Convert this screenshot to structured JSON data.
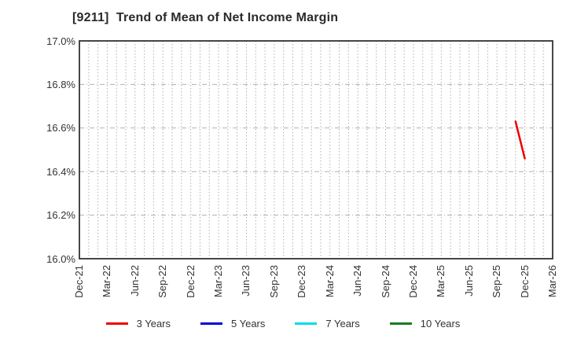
{
  "chart_data": {
    "type": "line",
    "title": "[9211]  Trend of Mean of Net Income Margin",
    "stock_code": "9211",
    "x_tick_labels": [
      "Dec-21",
      "Mar-22",
      "Jun-22",
      "Sep-22",
      "Dec-22",
      "Mar-23",
      "Jun-23",
      "Sep-23",
      "Dec-23",
      "Mar-24",
      "Jun-24",
      "Sep-24",
      "Dec-24",
      "Mar-25",
      "Jun-25",
      "Sep-25",
      "Dec-25",
      "Mar-26"
    ],
    "x_months_total": 51,
    "y_ticks": [
      {
        "label": "16.0%",
        "value": 16.0
      },
      {
        "label": "16.2%",
        "value": 16.2
      },
      {
        "label": "16.4%",
        "value": 16.4
      },
      {
        "label": "16.6%",
        "value": 16.6
      },
      {
        "label": "16.8%",
        "value": 16.8
      },
      {
        "label": "17.0%",
        "value": 17.0
      }
    ],
    "ylim": [
      16.0,
      17.0
    ],
    "grid": {
      "vertical": "monthly dotted",
      "horizontal": "0.2% dashed",
      "color": "#b0b0b0"
    },
    "axis_color": "#333333",
    "series": [
      {
        "name": "3 Years",
        "color": "#ee0000",
        "points": [
          {
            "month_label": "Nov-25",
            "month_index": 47,
            "value": 16.63
          },
          {
            "month_label": "Dec-25",
            "month_index": 48,
            "value": 16.46
          }
        ]
      },
      {
        "name": "5 Years",
        "color": "#0000dd",
        "points": []
      },
      {
        "name": "7 Years",
        "color": "#00dde6",
        "points": []
      },
      {
        "name": "10 Years",
        "color": "#177d22",
        "points": []
      }
    ],
    "legend_position": "bottom"
  }
}
